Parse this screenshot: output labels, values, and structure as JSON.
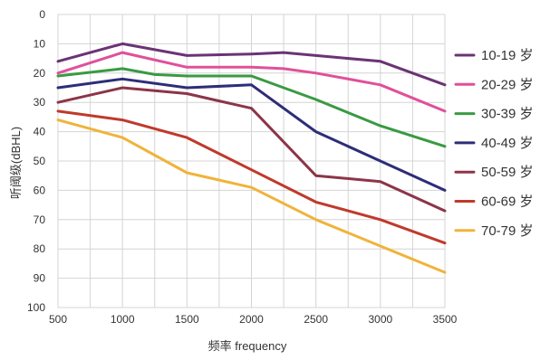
{
  "chart_data": {
    "type": "line",
    "xlabel": "频率 frequency",
    "ylabel": "听阈级(dBHL)",
    "x": [
      500,
      750,
      1000,
      1250,
      1500,
      1750,
      2000,
      2250,
      2500,
      2750,
      3000,
      3250,
      3500
    ],
    "x_ticks": [
      "500",
      "1000",
      "1500",
      "2000",
      "2500",
      "3000",
      "3500"
    ],
    "x_tick_values": [
      500,
      1000,
      1500,
      2000,
      2500,
      3000,
      3500
    ],
    "y_ticks": [
      "0",
      "10",
      "20",
      "30",
      "40",
      "50",
      "60",
      "70",
      "80",
      "90",
      "100"
    ],
    "y_tick_values": [
      0,
      10,
      20,
      30,
      40,
      50,
      60,
      70,
      80,
      90,
      100
    ],
    "xlim": [
      500,
      3500
    ],
    "ylim": [
      0,
      100
    ],
    "y_inverted": true,
    "grid": true,
    "legend_position": "right",
    "series": [
      {
        "name": "10-19 岁",
        "color": "#6b3375",
        "x": [
          500,
          1000,
          1500,
          2000,
          2250,
          2500,
          3000,
          3500
        ],
        "values": [
          16,
          10,
          14,
          13.5,
          13,
          14,
          16,
          24
        ]
      },
      {
        "name": "20-29 岁",
        "color": "#e0509a",
        "x": [
          500,
          1000,
          1500,
          2000,
          2250,
          2500,
          3000,
          3500
        ],
        "values": [
          20,
          13,
          18,
          18,
          18.5,
          20,
          24,
          33
        ]
      },
      {
        "name": "30-39 岁",
        "color": "#3a9a43",
        "x": [
          500,
          1000,
          1250,
          1500,
          2000,
          2500,
          3000,
          3500
        ],
        "values": [
          21,
          18.5,
          20.5,
          21,
          21,
          29,
          38,
          45
        ]
      },
      {
        "name": "40-49 岁",
        "color": "#2e2d78",
        "x": [
          500,
          1000,
          1500,
          2000,
          2500,
          3000,
          3500
        ],
        "values": [
          25,
          22,
          25,
          24,
          40,
          50,
          60
        ]
      },
      {
        "name": "50-59 岁",
        "color": "#8c3548",
        "x": [
          500,
          1000,
          1500,
          1750,
          2000,
          2500,
          3000,
          3500
        ],
        "values": [
          30,
          25,
          27,
          29.5,
          32,
          55,
          57,
          67
        ]
      },
      {
        "name": "60-69 岁",
        "color": "#c0392b",
        "x": [
          500,
          1000,
          1500,
          2000,
          2500,
          3000,
          3500
        ],
        "values": [
          33,
          36,
          42,
          53,
          64,
          70,
          78
        ]
      },
      {
        "name": "70-79 岁",
        "color": "#f0b33a",
        "x": [
          500,
          1000,
          1500,
          2000,
          2500,
          3000,
          3500
        ],
        "values": [
          36,
          42,
          54,
          59,
          70,
          79,
          88
        ]
      }
    ]
  }
}
